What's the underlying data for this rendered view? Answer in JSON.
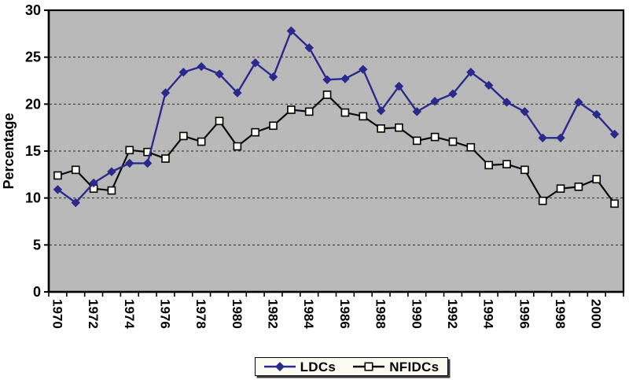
{
  "chart_data": {
    "type": "line",
    "title": "",
    "xlabel": "",
    "ylabel": "Percentage",
    "ylim": [
      0,
      30
    ],
    "ytick_step": 5,
    "x_label_step": 2,
    "grid": "horizontal-dashed",
    "legend_position": "bottom-center",
    "plot_background": "#b9b9b9",
    "page_background": "#ffffff",
    "gridline_color": "#2a2a2a",
    "axis_color": "#000000",
    "x": [
      1970,
      1971,
      1972,
      1973,
      1974,
      1975,
      1976,
      1977,
      1978,
      1979,
      1980,
      1981,
      1982,
      1983,
      1984,
      1985,
      1986,
      1987,
      1988,
      1989,
      1990,
      1991,
      1992,
      1993,
      1994,
      1995,
      1996,
      1997,
      1998,
      1999,
      2000,
      2001
    ],
    "series": [
      {
        "name": "LDCs",
        "color": "#2a2a8c",
        "marker": "diamond",
        "marker_fill": "#2a2a8c",
        "values": [
          10.9,
          9.5,
          11.6,
          12.8,
          13.7,
          13.7,
          21.2,
          23.4,
          24.0,
          23.2,
          21.2,
          24.4,
          22.9,
          27.8,
          26.0,
          22.6,
          22.7,
          23.7,
          19.3,
          21.9,
          19.2,
          20.3,
          21.1,
          23.4,
          22.0,
          20.2,
          19.2,
          16.4,
          16.4,
          20.2,
          18.9,
          16.8
        ]
      },
      {
        "name": "NFIDCs",
        "color": "#0b0b0b",
        "marker": "square",
        "marker_fill": "#fbfbf0",
        "values": [
          12.4,
          13.0,
          11.0,
          10.8,
          15.1,
          14.9,
          14.2,
          16.6,
          16.0,
          18.2,
          15.5,
          17.0,
          17.7,
          19.4,
          19.2,
          21.0,
          19.1,
          18.7,
          17.4,
          17.5,
          16.1,
          16.5,
          16.0,
          15.4,
          13.5,
          13.6,
          13.0,
          9.7,
          11.0,
          11.2,
          12.0,
          9.4
        ]
      }
    ]
  }
}
